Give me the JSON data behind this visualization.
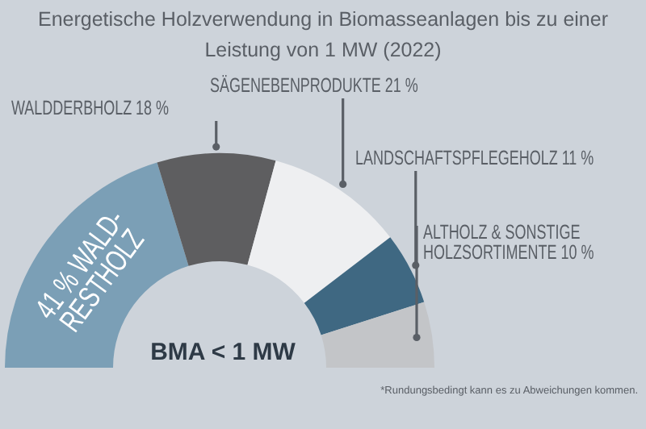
{
  "chart_data": {
    "type": "donut",
    "title": "Energetische Holzverwendung in Biomasseanlagen bis zu einer Leistung von 1 MW (2022)",
    "categories": [
      "WALD-RESTHOLZ",
      "WALDDERBHOLZ",
      "SÄGENEBENPRODUKTE",
      "LANDSCHAFTSPFLEGEHOLZ",
      "ALTHOLZ & SONSTIGE HOLZSORTIMENTE"
    ],
    "values": [
      41,
      18,
      21,
      11,
      10
    ],
    "value_labels": [
      "41 %",
      "18 %",
      "21 %",
      "11 %",
      "10 %"
    ],
    "colors": [
      "#7b9fb6",
      "#5e5e60",
      "#eeeff1",
      "#3f6882",
      "#c3c5c8"
    ],
    "annotations": [
      "BMA < 1 MW",
      "*Rundungsbedingt kann es zu Abweichungen kommen."
    ]
  }
}
